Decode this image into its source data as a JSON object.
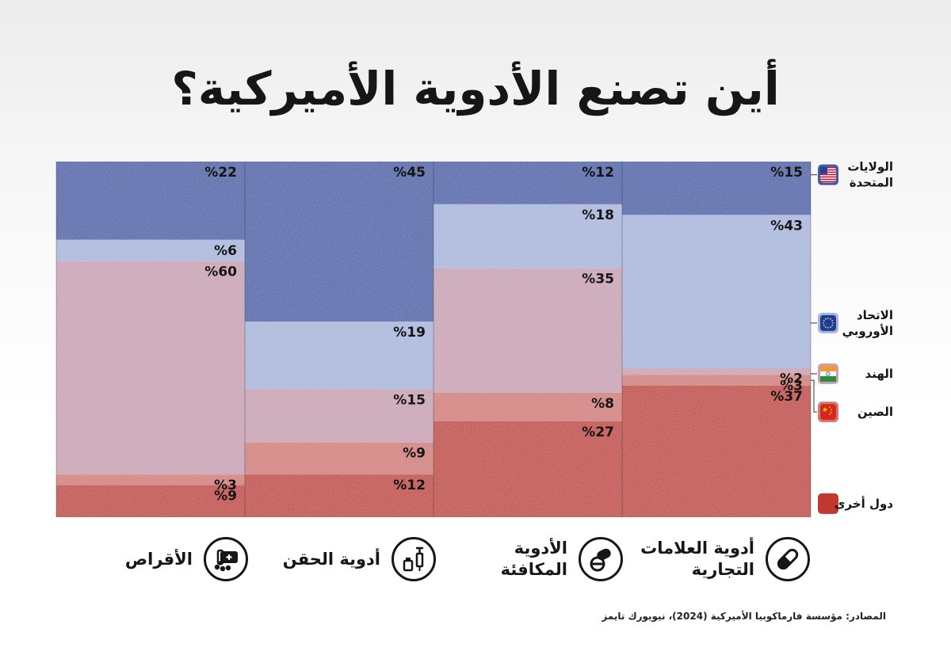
{
  "title": "أين تصنع الأدوية الأميركية؟",
  "source": "المصادر: مؤسسة فارماكوبيا الأميركية (2024)، نيويورك تايمز",
  "colors": {
    "us": "#3f5ca7",
    "eu": "#a9b6dc",
    "india": "#c8a1b3",
    "china": "#d27a77",
    "other": "#c0392f"
  },
  "categories": [
    {
      "key": "brand",
      "label": "أدوية العلامات\nالتجارية",
      "icon": "capsule-icon"
    },
    {
      "key": "generic",
      "label": "الأدوية\nالمكافئة",
      "icon": "pills-icon"
    },
    {
      "key": "injection",
      "label": "أدوية الحقن",
      "icon": "syringe-icon"
    },
    {
      "key": "tablets",
      "label": "الأقراص",
      "icon": "pill-bottle-icon"
    }
  ],
  "legend": [
    {
      "key": "us",
      "label": "الولايات\nالمتحدة",
      "icon": "us-flag-icon"
    },
    {
      "key": "eu",
      "label": "الاتحاد\nالأوروبي",
      "icon": "eu-flag-icon"
    },
    {
      "key": "india",
      "label": "الهند",
      "icon": "india-flag-icon"
    },
    {
      "key": "china",
      "label": "الصين",
      "icon": "china-flag-icon"
    },
    {
      "key": "other",
      "label": "دول أخرى",
      "icon": "red-square-icon"
    }
  ],
  "chart_data": {
    "type": "bar",
    "stacked": true,
    "orientation": "vertical",
    "value_suffix": "%",
    "categories": [
      "أدوية العلامات التجارية",
      "الأدوية المكافئة",
      "أدوية الحقن",
      "الأقراص"
    ],
    "series": [
      {
        "name": "الولايات المتحدة",
        "key": "us",
        "values": [
          15,
          12,
          45,
          22
        ]
      },
      {
        "name": "الاتحاد الأوروبي",
        "key": "eu",
        "values": [
          43,
          18,
          19,
          6
        ]
      },
      {
        "name": "الهند",
        "key": "india",
        "values": [
          2,
          35,
          15,
          60
        ]
      },
      {
        "name": "الصين",
        "key": "china",
        "values": [
          3,
          8,
          9,
          3
        ]
      },
      {
        "name": "دول أخرى",
        "key": "other",
        "values": [
          37,
          27,
          12,
          9
        ]
      }
    ],
    "ylim": [
      0,
      100
    ]
  }
}
